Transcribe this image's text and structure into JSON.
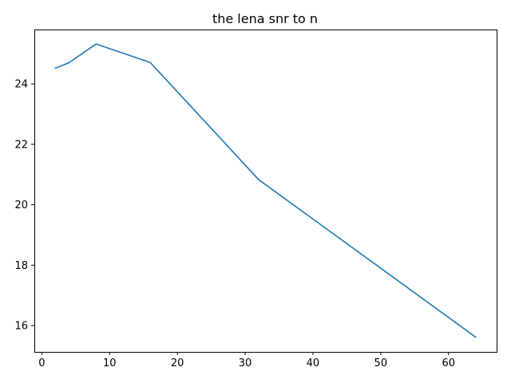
{
  "chart_data": {
    "type": "line",
    "title": "the lena snr to n",
    "xlabel": "",
    "ylabel": "",
    "xlim": [
      -1.1,
      67.1
    ],
    "ylim": [
      15.13,
      25.8
    ],
    "x_ticks": [
      0,
      10,
      20,
      30,
      40,
      50,
      60
    ],
    "y_ticks": [
      16,
      18,
      20,
      22,
      24
    ],
    "grid": false,
    "series": [
      {
        "color": "#1f77b4",
        "x": [
          2,
          4,
          8,
          16,
          32,
          64
        ],
        "y": [
          24.52,
          24.7,
          25.32,
          24.71,
          20.83,
          15.62
        ]
      }
    ]
  }
}
